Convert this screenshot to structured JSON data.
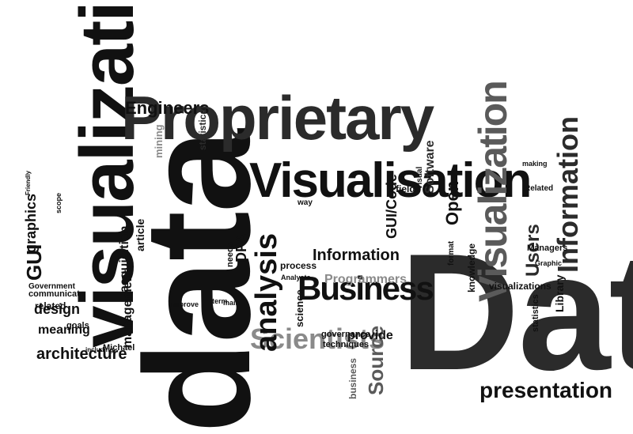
{
  "colors": {
    "background": "#ffffff",
    "black": "#111111",
    "dark": "#2b2b2b",
    "mid": "#5a5a5a",
    "grey": "#8a8a8a",
    "light": "#b5b5b5"
  },
  "words": {
    "data_big": "data",
    "Data_big": "Data",
    "visualization_left": "visualization",
    "proprietary": "Proprietary",
    "visualisation": "Visualisation",
    "visualization_right": "Visualization",
    "information_right": "Information",
    "business": "Business",
    "scientists": "Scientists",
    "presentation": "presentation",
    "architecture": "architecture",
    "engineers": "Engineers",
    "analysis": "analysis",
    "information_mid": "Information",
    "programmers": "Programmers",
    "design": "design",
    "meaning": "meaning",
    "gui": "GUI",
    "graphics": "graphics",
    "gui_code": "GUI/Code",
    "open": "Open",
    "source": "Source",
    "software": "Software",
    "users": "Users",
    "acquisition": "acquisition",
    "article": "article",
    "management": "management",
    "dpa": "DPA",
    "provide": "provide",
    "statistical": "statistical",
    "mining": "mining",
    "related": "related",
    "communicate": "communicate",
    "government": "Government",
    "statistics": "statistics",
    "library": "Library",
    "managers": "Managers",
    "visualizations": "visualizations",
    "knowledge": "knowledge",
    "fields": "fields",
    "science": "science",
    "process": "process",
    "analysts": "Analysts",
    "goals": "goals",
    "michael": "Michael",
    "business_small": "business",
    "techniques": "techniques",
    "governance": "governance",
    "needs": "needs",
    "main": "main",
    "term": "term",
    "improve": "improve",
    "friendly": "Friendly",
    "scope": "scope",
    "making": "making",
    "graphic": "Graphic",
    "related_right": "Related",
    "visual": "Visual",
    "format": "format",
    "way": "way",
    "including": "including"
  }
}
